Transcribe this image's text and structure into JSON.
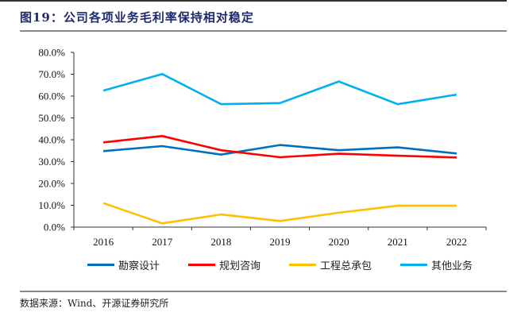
{
  "figure": {
    "title": "图19：公司各项业务毛利率保持相对稳定",
    "source": "数据来源：Wind、开源证券研究所"
  },
  "chart_data": {
    "type": "line",
    "title": "图19：公司各项业务毛利率保持相对稳定",
    "xlabel": "",
    "ylabel": "",
    "categories": [
      "2016",
      "2017",
      "2018",
      "2019",
      "2020",
      "2021",
      "2022"
    ],
    "ylim": [
      0,
      80
    ],
    "yticks": [
      0,
      10,
      20,
      30,
      40,
      50,
      60,
      70,
      80
    ],
    "ytick_labels": [
      "0.0%",
      "10.0%",
      "20.0%",
      "30.0%",
      "40.0%",
      "50.0%",
      "60.0%",
      "70.0%",
      "80.0%"
    ],
    "grid": false,
    "legend_position": "bottom",
    "series": [
      {
        "name": "勘察设计",
        "color": "#0070c0",
        "values": [
          34.8,
          37.1,
          33.2,
          37.6,
          35.2,
          36.5,
          33.7
        ]
      },
      {
        "name": "规划咨询",
        "color": "#ff0000",
        "values": [
          38.8,
          41.7,
          35.2,
          32.0,
          33.6,
          32.7,
          31.9
        ]
      },
      {
        "name": "工程总承包",
        "color": "#ffc000",
        "values": [
          11.0,
          1.7,
          5.8,
          2.8,
          6.6,
          9.8,
          9.8
        ]
      },
      {
        "name": "其他业务",
        "color": "#00b0f0",
        "values": [
          62.5,
          70.1,
          56.3,
          56.8,
          66.7,
          56.3,
          60.7
        ]
      }
    ]
  }
}
